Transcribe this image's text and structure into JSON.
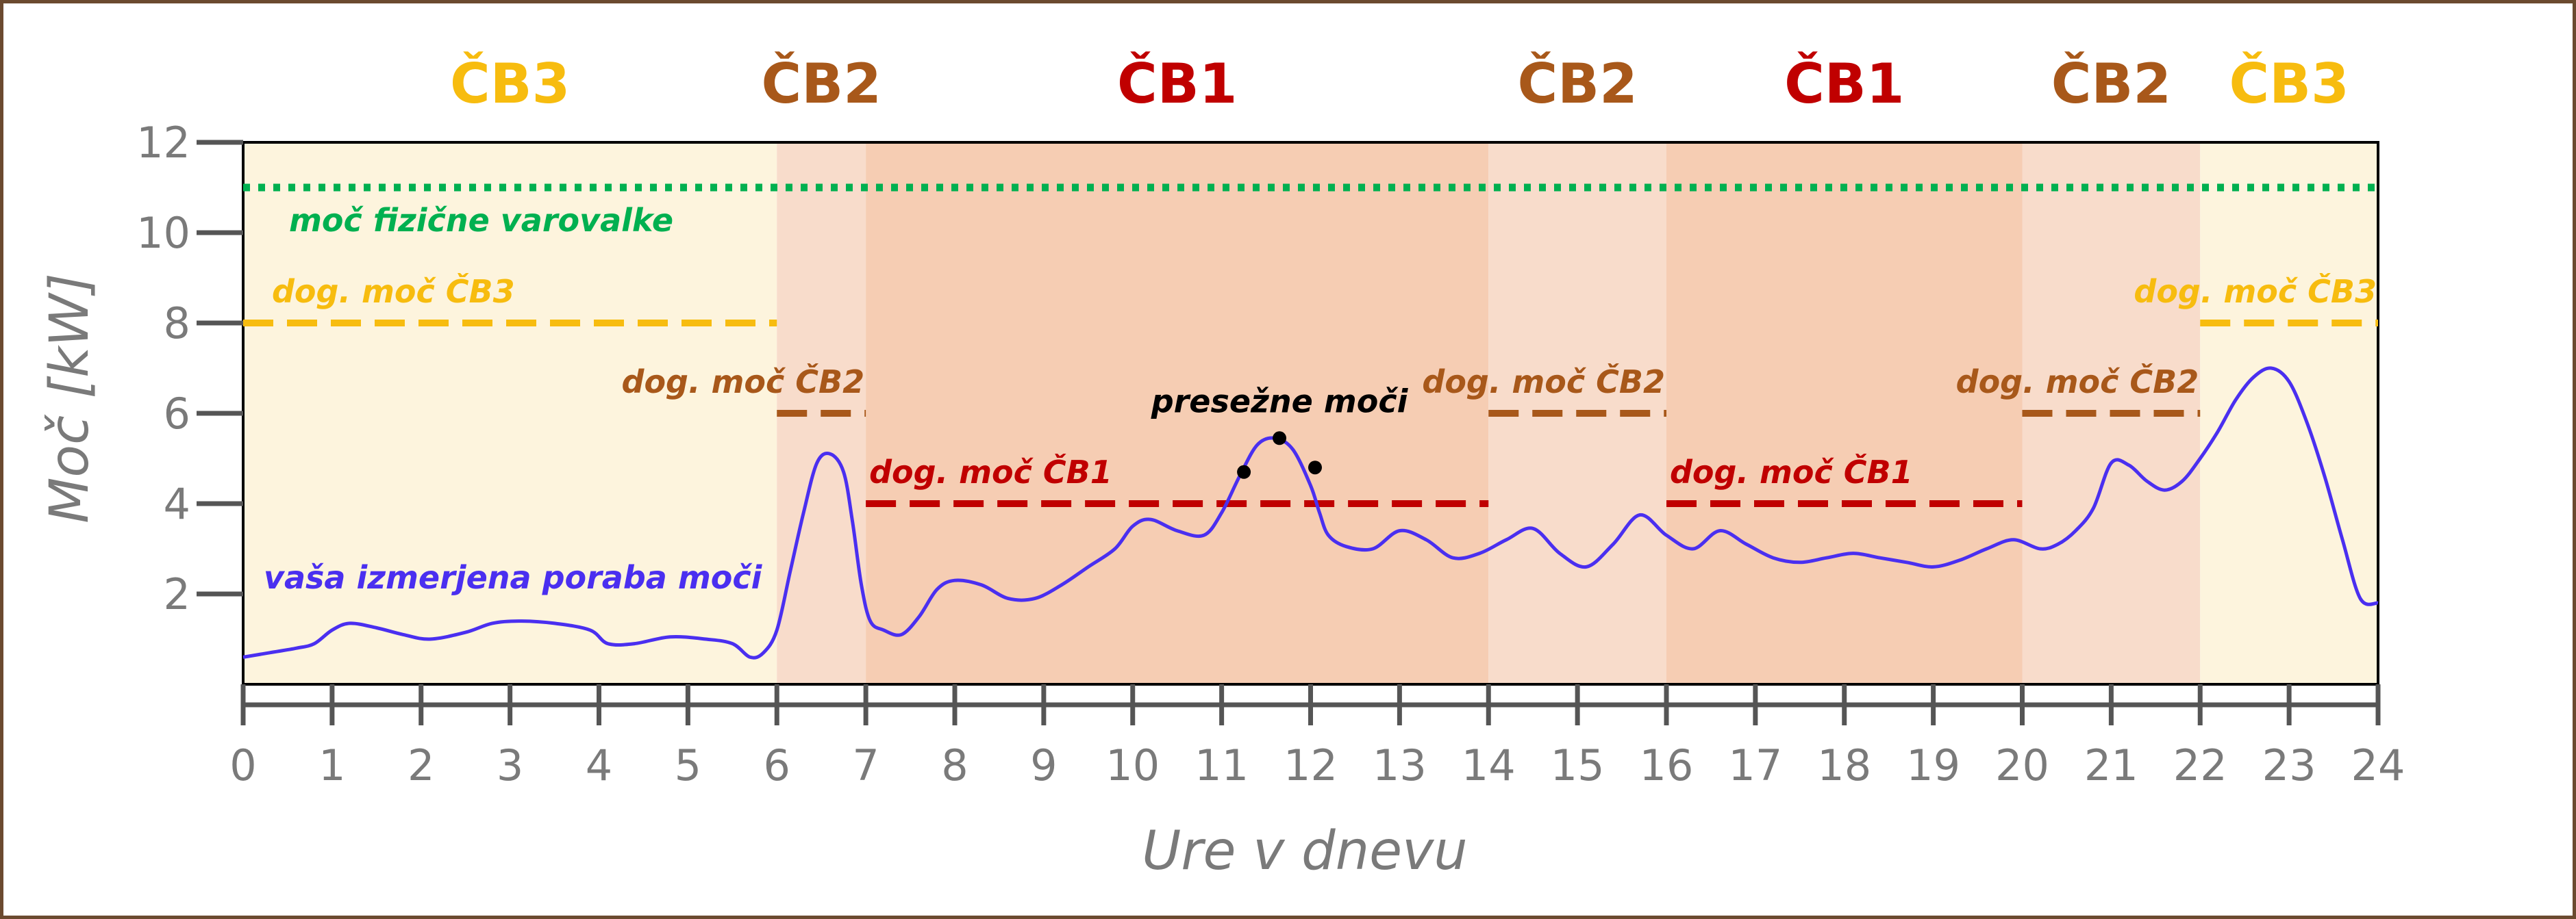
{
  "chart_data": {
    "type": "line",
    "xlabel": "Ure v dnevu",
    "ylabel": "Moč [kW]",
    "xlim": [
      0,
      24
    ],
    "ylim": [
      0,
      12
    ],
    "x_ticks": [
      0,
      1,
      2,
      3,
      4,
      5,
      6,
      7,
      8,
      9,
      10,
      11,
      12,
      13,
      14,
      15,
      16,
      17,
      18,
      19,
      20,
      21,
      22,
      23,
      24
    ],
    "y_ticks": [
      2,
      4,
      6,
      8,
      10,
      12
    ],
    "blocks": [
      {
        "label": "ČB3",
        "start": 0,
        "end": 6,
        "fill": "#fdf4dd",
        "label_color": "#f7bc0f"
      },
      {
        "label": "ČB2",
        "start": 6,
        "end": 7,
        "fill": "#f8dccb",
        "label_color": "#a8581a"
      },
      {
        "label": "ČB1",
        "start": 7,
        "end": 14,
        "fill": "#f6cdb3",
        "label_color": "#c00000"
      },
      {
        "label": "ČB2",
        "start": 14,
        "end": 16,
        "fill": "#f8dccb",
        "label_color": "#a8581a"
      },
      {
        "label": "ČB1",
        "start": 16,
        "end": 20,
        "fill": "#f6cdb3",
        "label_color": "#c00000"
      },
      {
        "label": "ČB2",
        "start": 20,
        "end": 22,
        "fill": "#f8dccb",
        "label_color": "#a8581a"
      },
      {
        "label": "ČB3",
        "start": 22,
        "end": 24,
        "fill": "#fdf4dd",
        "label_color": "#f7bc0f"
      }
    ],
    "fuse_limit": {
      "label": "moč fizične varovalke",
      "value": 11,
      "color": "#00b050"
    },
    "agreed_power": [
      {
        "label": "dog. moč ČB3",
        "start": 0,
        "end": 6,
        "value": 8,
        "color": "#f7bc0f"
      },
      {
        "label": "dog. moč ČB2",
        "start": 6,
        "end": 7,
        "value": 6,
        "color": "#a8581a"
      },
      {
        "label": "dog. moč ČB1",
        "start": 7,
        "end": 14,
        "value": 4,
        "color": "#c00000"
      },
      {
        "label": "dog. moč ČB2",
        "start": 14,
        "end": 16,
        "value": 6,
        "color": "#a8581a"
      },
      {
        "label": "dog. moč ČB1",
        "start": 16,
        "end": 20,
        "value": 4,
        "color": "#c00000"
      },
      {
        "label": "dog. moč ČB2",
        "start": 20,
        "end": 22,
        "value": 6,
        "color": "#a8581a"
      },
      {
        "label": "dog. moč ČB3",
        "start": 22,
        "end": 24,
        "value": 8,
        "color": "#f7bc0f"
      }
    ],
    "series": [
      {
        "name": "vaša izmerjena poraba moči",
        "color": "#4a2ff0",
        "x": [
          0,
          0.3,
          0.6,
          0.8,
          1.0,
          1.2,
          1.5,
          1.8,
          2.1,
          2.5,
          2.8,
          3.1,
          3.5,
          3.9,
          4.1,
          4.4,
          4.8,
          5.2,
          5.5,
          5.7,
          5.85,
          6.0,
          6.15,
          6.3,
          6.45,
          6.6,
          6.75,
          6.85,
          6.95,
          7.05,
          7.2,
          7.4,
          7.6,
          7.8,
          8.0,
          8.3,
          8.6,
          8.9,
          9.2,
          9.5,
          9.8,
          10.0,
          10.2,
          10.5,
          10.8,
          11.0,
          11.2,
          11.4,
          11.6,
          11.8,
          12.0,
          12.1,
          12.2,
          12.4,
          12.7,
          13.0,
          13.3,
          13.6,
          13.9,
          14.2,
          14.5,
          14.8,
          15.1,
          15.4,
          15.7,
          16.0,
          16.3,
          16.6,
          16.9,
          17.2,
          17.5,
          17.8,
          18.1,
          18.4,
          18.7,
          19.0,
          19.3,
          19.6,
          19.9,
          20.2,
          20.4,
          20.6,
          20.8,
          21.0,
          21.2,
          21.4,
          21.6,
          21.8,
          22.0,
          22.2,
          22.4,
          22.6,
          22.8,
          23.0,
          23.2,
          23.4,
          23.6,
          23.8,
          24.0
        ],
        "y": [
          0.6,
          0.7,
          0.8,
          0.9,
          1.2,
          1.35,
          1.25,
          1.1,
          1.0,
          1.15,
          1.35,
          1.4,
          1.35,
          1.2,
          0.9,
          0.9,
          1.05,
          1.0,
          0.9,
          0.6,
          0.7,
          1.2,
          2.5,
          3.8,
          4.9,
          5.1,
          4.7,
          3.6,
          2.2,
          1.4,
          1.2,
          1.1,
          1.5,
          2.1,
          2.3,
          2.2,
          1.9,
          1.9,
          2.2,
          2.6,
          3.0,
          3.5,
          3.65,
          3.4,
          3.3,
          3.8,
          4.6,
          5.3,
          5.45,
          5.2,
          4.4,
          3.8,
          3.3,
          3.05,
          3.0,
          3.4,
          3.2,
          2.8,
          2.9,
          3.2,
          3.45,
          2.9,
          2.6,
          3.1,
          3.75,
          3.3,
          3.0,
          3.4,
          3.1,
          2.8,
          2.7,
          2.8,
          2.9,
          2.8,
          2.7,
          2.6,
          2.75,
          3.0,
          3.2,
          3.0,
          3.1,
          3.4,
          3.9,
          4.9,
          4.85,
          4.5,
          4.3,
          4.5,
          5.0,
          5.6,
          6.3,
          6.8,
          7.0,
          6.7,
          5.8,
          4.6,
          3.2,
          1.9,
          1.8
        ]
      }
    ],
    "excess_label": "presežne moči",
    "excess_points": [
      {
        "x": 11.25,
        "y": 4.7
      },
      {
        "x": 11.65,
        "y": 5.45
      },
      {
        "x": 12.05,
        "y": 4.8
      }
    ]
  }
}
